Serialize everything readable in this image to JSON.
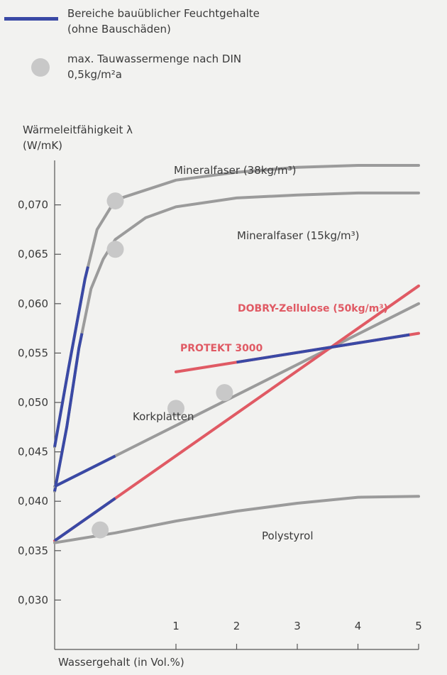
{
  "legend": [
    {
      "kind": "line",
      "color": "#3a49a5",
      "text_lines": [
        "Bereiche bauüblicher Feuchtgehalte",
        "(ohne Bauschäden)"
      ]
    },
    {
      "kind": "dot",
      "color": "#c8c8c8",
      "text_lines": [
        "max. Tauwassermenge nach DIN",
        "0,5kg/m²a"
      ]
    }
  ],
  "chart_data": {
    "type": "line",
    "ylabel_lines": [
      "Wärmeleitfähigkeit λ",
      "(W/mK)"
    ],
    "xlabel": "Wassergehalt (in Vol.%)",
    "xlim": [
      -1,
      5
    ],
    "ylim": [
      0.025,
      0.0745
    ],
    "x_ticks": [
      1,
      2,
      3,
      4,
      5
    ],
    "x_tick_labels": [
      "1",
      "2",
      "3",
      "4",
      "5"
    ],
    "y_ticks": [
      0.03,
      0.035,
      0.04,
      0.045,
      0.05,
      0.055,
      0.06,
      0.065,
      0.07
    ],
    "y_tick_labels": [
      "0,030",
      "0,035",
      "0,040",
      "0,045",
      "0,050",
      "0,055",
      "0,060",
      "0,065",
      "0,070"
    ],
    "colors": {
      "gray": "#9b9b9b",
      "blue": "#3a49a5",
      "red": "#e05a64",
      "dot": "#c8c8c8"
    },
    "series": [
      {
        "name": "Mineralfaser (38kg/m³)",
        "color": "#9b9b9b",
        "label_color": "#3a3a3a",
        "label_bold": false,
        "points": [
          [
            -1.0,
            0.0455
          ],
          [
            -0.77,
            0.0535
          ],
          [
            -0.5,
            0.0625
          ],
          [
            -0.3,
            0.0675
          ],
          [
            0.0,
            0.0705
          ],
          [
            1.0,
            0.0725
          ],
          [
            2.0,
            0.0733
          ],
          [
            3.0,
            0.0738
          ],
          [
            4.0,
            0.074
          ],
          [
            5.0,
            0.074
          ]
        ],
        "blue_range": [
          -1.0,
          -0.45
        ],
        "markers": [
          [
            0.0,
            0.0704
          ]
        ]
      },
      {
        "name": "Mineralfaser (15kg/m³)",
        "color": "#9b9b9b",
        "label_color": "#3a3a3a",
        "label_bold": false,
        "points": [
          [
            -1.0,
            0.041
          ],
          [
            -0.8,
            0.0475
          ],
          [
            -0.6,
            0.0555
          ],
          [
            -0.4,
            0.0615
          ],
          [
            -0.2,
            0.0645
          ],
          [
            0.0,
            0.0665
          ],
          [
            0.5,
            0.0687
          ],
          [
            1.0,
            0.0698
          ],
          [
            2.0,
            0.0707
          ],
          [
            3.0,
            0.071
          ],
          [
            4.0,
            0.0712
          ],
          [
            5.0,
            0.0712
          ]
        ],
        "blue_range": [
          -1.0,
          -0.55
        ],
        "markers": [
          [
            0.0,
            0.0655
          ]
        ]
      },
      {
        "name": "Korkplatten",
        "color": "#9b9b9b",
        "label_color": "#3a3a3a",
        "label_bold": false,
        "points": [
          [
            -1.0,
            0.0415
          ],
          [
            5.0,
            0.06
          ]
        ],
        "blue_range": [
          -1.0,
          0.0
        ],
        "markers": [
          [
            1.0,
            0.0494
          ]
        ]
      },
      {
        "name": "DOBRY-Zellulose (50kg/m³)",
        "color": "#e05a64",
        "label_color": "#e05a64",
        "label_bold": true,
        "points": [
          [
            -1.0,
            0.036
          ],
          [
            5.0,
            0.0618
          ]
        ],
        "blue_range": [
          -1.0,
          0.0
        ],
        "markers": [
          [
            1.8,
            0.051
          ]
        ]
      },
      {
        "name": "PROTEKT 3000",
        "color": "#e05a64",
        "label_color": "#e05a64",
        "label_bold": true,
        "points": [
          [
            1.0,
            0.0531
          ],
          [
            5.0,
            0.057
          ]
        ],
        "blue_range": [
          2.0,
          4.85
        ],
        "markers": []
      },
      {
        "name": "Polystyrol",
        "color": "#9b9b9b",
        "label_color": "#3a3a3a",
        "label_bold": false,
        "points": [
          [
            -1.0,
            0.0358
          ],
          [
            0.0,
            0.0368
          ],
          [
            1.0,
            0.038
          ],
          [
            2.0,
            0.039
          ],
          [
            3.0,
            0.0398
          ],
          [
            4.0,
            0.0404
          ],
          [
            5.0,
            0.0405
          ]
        ],
        "blue_range": null,
        "markers": [
          [
            -0.25,
            0.0371
          ]
        ]
      }
    ]
  }
}
